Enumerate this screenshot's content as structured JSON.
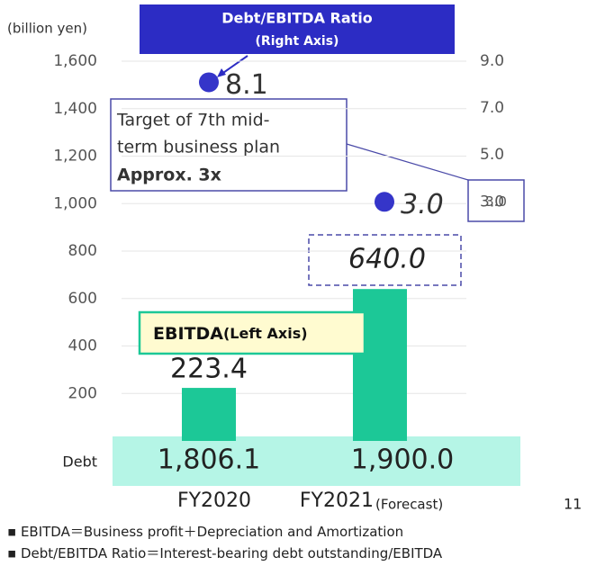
{
  "chart_data": {
    "type": "bar",
    "unit_label": "(billion yen)",
    "categories": [
      "FY2020",
      "FY2021"
    ],
    "category_note": "(Forecast)",
    "series": [
      {
        "name": "EBITDA",
        "legend_note": "(Left Axis)",
        "color": "#1cc897",
        "values": [
          223.4,
          640.0
        ],
        "value_labels": [
          "223.4",
          "640.0"
        ]
      },
      {
        "name": "Debt/EBITDA Ratio",
        "legend_note": "(Right Axis)",
        "axis": "y2",
        "color": "#3535c9",
        "values": [
          8.1,
          3.0
        ],
        "value_labels": [
          "8.1",
          "3.0"
        ]
      }
    ],
    "ylim": [
      0,
      1600
    ],
    "yticks": [
      200,
      400,
      600,
      800,
      {
        "value": 1000,
        "label": "1,000"
      },
      {
        "value": 1200,
        "label": "1,200"
      },
      {
        "value": 1400,
        "label": "1,400"
      },
      {
        "value": 1600,
        "label": "1,600"
      }
    ],
    "y2lim": [
      -7.2,
      9.0
    ],
    "y2ticks": [
      {
        "value": 3.0,
        "label": "3.0"
      },
      {
        "value": 5.0,
        "label": "5.0"
      },
      {
        "value": 7.0,
        "label": "7.0"
      },
      {
        "value": 9.0,
        "label": "9.0"
      }
    ],
    "grid": true,
    "annotation": {
      "lines": [
        "Target of 7th mid-",
        "term business plan"
      ],
      "bold_line": "Approx. 3x",
      "target": {
        "value": 3.0,
        "label": "3.0"
      }
    },
    "debt": {
      "label": "Debt",
      "values": [
        1806.1,
        1900.0
      ],
      "value_labels": [
        "1,806.1",
        "1,900.0"
      ]
    },
    "page_number": "11",
    "footnotes": [
      "EBITDA＝Business profit＋Depreciation and Amortization",
      "Debt/EBITDA Ratio＝Interest-bearing debt outstanding/EBITDA"
    ]
  }
}
